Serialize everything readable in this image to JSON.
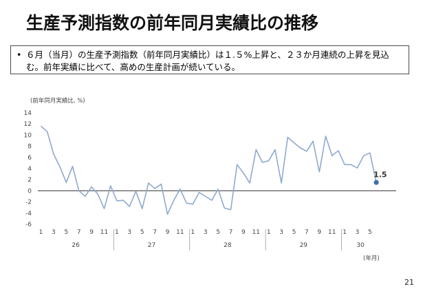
{
  "title": "生産予測指数の前年同月実績比の推移",
  "summary": {
    "bullet": "•",
    "text": "６月（当月）の生産予測指数（前年同月実績比）は１.５%上昇と、２３か月連続の上昇を見込む。前年実績に比べて、高めの生産計画が続いている。"
  },
  "unit_label": "(前年同月実績比, %)",
  "year_unit_label": "(年月)",
  "page_number": "21",
  "end_value_label": "1.5",
  "colors": {
    "line": "#8ea9cf",
    "endpoint": "#3f6fa8",
    "zero_line": "#333333"
  },
  "chart_data": {
    "type": "line",
    "title": "",
    "xlabel": "(年月)",
    "ylabel": "(前年同月実績比, %)",
    "ylim": [
      -6,
      14
    ],
    "yticks": [
      14,
      12,
      10,
      8,
      6,
      4,
      2,
      0,
      -2,
      -4,
      -6
    ],
    "month_ticks": [
      "1",
      "3",
      "5",
      "7",
      "9",
      "11",
      "1",
      "3",
      "5",
      "7",
      "9",
      "11",
      "1",
      "3",
      "5",
      "7",
      "9",
      "11",
      "1",
      "3",
      "5",
      "7",
      "9",
      "11",
      "1",
      "3",
      "5"
    ],
    "year_labels": [
      "26",
      "27",
      "28",
      "29",
      "30"
    ],
    "series": [
      {
        "values": [
          11.6,
          10.6,
          6.6,
          4.3,
          1.5,
          4.4,
          0.0,
          -1.0,
          0.7,
          -0.6,
          -3.2,
          0.9,
          -1.8,
          -1.7,
          -2.8,
          -0.1,
          -3.2,
          1.4,
          0.4,
          1.2,
          -4.2,
          -1.7,
          0.3,
          -2.2,
          -2.4,
          -0.3,
          -1.0,
          -1.7,
          0.3,
          -3.1,
          -3.4,
          4.7,
          3.2,
          1.4,
          7.4,
          5.1,
          5.4,
          7.4,
          1.4,
          9.6,
          8.6,
          7.7,
          7.1,
          8.9,
          3.4,
          9.8,
          6.3,
          7.2,
          4.7,
          4.7,
          4.1,
          6.3,
          6.8,
          1.5
        ]
      }
    ]
  }
}
